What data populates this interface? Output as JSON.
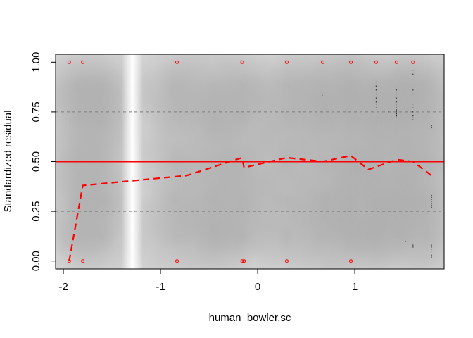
{
  "chart_data": {
    "type": "scatter",
    "xlabel": "human_bowler.sc",
    "ylabel": "Standardized residual",
    "xlim": [
      -2.08,
      1.92
    ],
    "ylim": [
      -0.04,
      1.04
    ],
    "x_ticks": [
      -2,
      -1,
      0,
      1
    ],
    "x_tick_labels": [
      "-2",
      "-1",
      "0",
      "1"
    ],
    "y_ticks": [
      0.0,
      0.25,
      0.5,
      0.75,
      1.0
    ],
    "y_tick_labels": [
      "0.00",
      "0.25",
      "0.50",
      "0.75",
      "1.00"
    ],
    "reference_lines": {
      "solid": [
        0.5
      ],
      "dashed": [
        0.25,
        0.75
      ],
      "solid_color": "#ff0000",
      "dashed_color": "#7f7f7f"
    },
    "outlier_points": {
      "color": "#ff0000",
      "top": [
        -1.94,
        -1.8,
        -0.83,
        -0.16,
        0.3,
        0.67,
        0.96,
        1.22,
        1.43,
        1.6
      ],
      "bottom": [
        -1.94,
        -1.8,
        -0.83,
        -0.16,
        -0.14,
        0.3,
        0.96
      ]
    },
    "residual_dots": {
      "x": [
        0.67,
        0.67,
        1.22,
        1.22,
        1.22,
        1.22,
        1.22,
        1.22,
        1.22,
        1.22,
        1.35,
        1.43,
        1.43,
        1.43,
        1.43,
        1.43,
        1.43,
        1.43,
        1.43,
        1.43,
        1.43,
        1.43,
        1.43,
        1.6,
        1.6,
        1.6,
        1.6,
        1.6,
        1.6,
        1.6,
        1.6,
        1.6,
        1.6,
        1.79,
        1.79,
        1.79,
        1.79,
        1.79,
        1.79,
        1.79,
        1.79,
        1.79,
        1.79,
        1.79,
        1.79,
        1.79,
        1.79,
        1.79,
        1.52,
        1.6,
        1.6
      ],
      "y": [
        0.84,
        0.83,
        0.9,
        0.88,
        0.86,
        0.84,
        0.82,
        0.8,
        0.79,
        0.77,
        0.75,
        0.86,
        0.84,
        0.82,
        0.8,
        0.79,
        0.78,
        0.77,
        0.76,
        0.75,
        0.74,
        0.73,
        0.72,
        0.96,
        0.94,
        0.86,
        0.84,
        0.79,
        0.77,
        0.75,
        0.73,
        0.72,
        0.71,
        0.68,
        0.67,
        0.33,
        0.32,
        0.31,
        0.3,
        0.29,
        0.28,
        0.27,
        0.08,
        0.07,
        0.06,
        0.05,
        0.03,
        0.02,
        0.1,
        0.08,
        0.07
      ]
    },
    "series": [
      {
        "color": "#ff0000",
        "style": "dashed",
        "x": [
          -1.94,
          -1.8,
          -0.73,
          -0.16,
          -0.14,
          0.3,
          0.67,
          0.96,
          1.14,
          1.43,
          1.6,
          1.79
        ],
        "values": [
          0.0,
          0.38,
          0.43,
          0.52,
          0.47,
          0.52,
          0.5,
          0.53,
          0.46,
          0.51,
          0.5,
          0.43
        ]
      }
    ],
    "background": {
      "type": "density_heatmap",
      "color_range": [
        "#c4c4c4",
        "#ffffff"
      ],
      "light_band_x": [
        -1.3,
        -1.28
      ]
    },
    "grid": false,
    "legend": "none"
  }
}
